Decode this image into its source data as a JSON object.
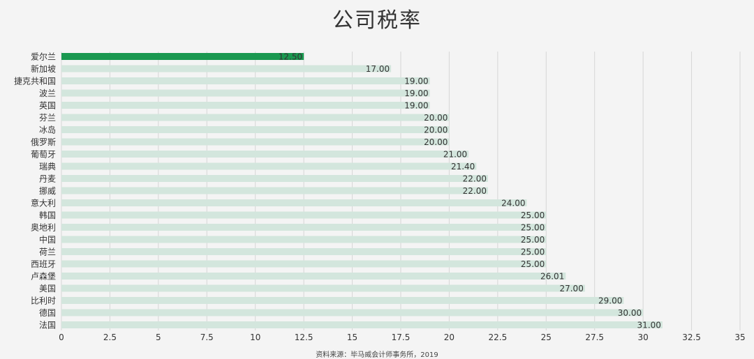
{
  "chart_data": {
    "type": "bar",
    "orientation": "horizontal",
    "title": "公司税率",
    "source": "资料来源：毕马威会计师事务所，2019",
    "categories": [
      "爱尔兰",
      "新加坡",
      "捷克共和国",
      "波兰",
      "英国",
      "芬兰",
      "冰岛",
      "俄罗斯",
      "葡萄牙",
      "瑞典",
      "丹麦",
      "挪威",
      "意大利",
      "韩国",
      "奥地利",
      "中国",
      "荷兰",
      "西班牙",
      "卢森堡",
      "美国",
      "比利时",
      "德国",
      "法国"
    ],
    "values": [
      12.5,
      17,
      19,
      19,
      19,
      20,
      20,
      20,
      21,
      21.4,
      22,
      22,
      24,
      25,
      25,
      25,
      25,
      25,
      26.01,
      27,
      29,
      30,
      31
    ],
    "data_labels": [
      "12.50",
      "17.00",
      "19.00",
      "19.00",
      "19.00",
      "20.00",
      "20.00",
      "20.00",
      "21.00",
      "21.40",
      "22.00",
      "22.00",
      "24.00",
      "25.00",
      "25.00",
      "25.00",
      "25.00",
      "25.00",
      "26.01",
      "27.00",
      "29.00",
      "30.00",
      "31.00"
    ],
    "highlight_index": 0,
    "xlim": [
      0,
      35
    ],
    "xticks": [
      0,
      2.5,
      5,
      7.5,
      10,
      12.5,
      15,
      17.5,
      20,
      22.5,
      25,
      27.5,
      30,
      32.5,
      35
    ],
    "xtick_labels": [
      "0",
      "2.5",
      "5",
      "7.5",
      "10",
      "12.5",
      "15",
      "17.5",
      "20",
      "22.5",
      "25",
      "27.5",
      "30",
      "32.5",
      "35"
    ],
    "grid": "vertical",
    "colors": {
      "highlight": "#1a9850",
      "bar": "#d3e6dd",
      "grid": "#d6d6d6",
      "background": "#f4f4f4",
      "text": "#333333"
    }
  }
}
